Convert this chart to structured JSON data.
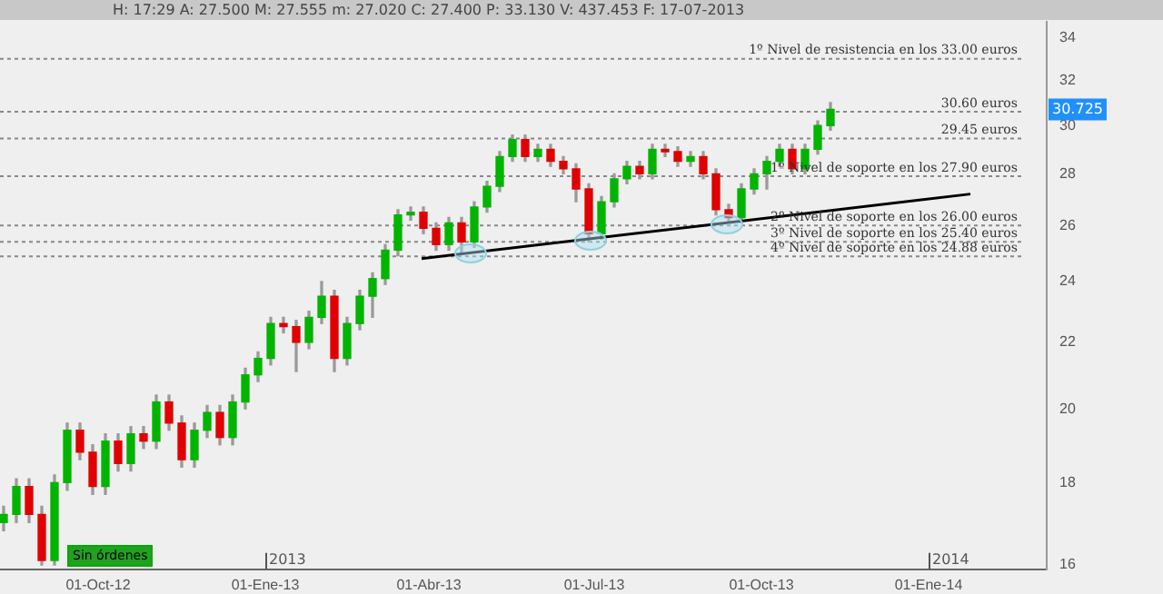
{
  "chart_data": {
    "type": "candlestick",
    "log": true,
    "grid": false,
    "legend": false,
    "xlim": [
      "2012-08-08",
      "2014-03-07"
    ],
    "xticks": [
      {
        "value": "2012-10-01",
        "label": "01-Oct-12"
      },
      {
        "value": "2013-01-01",
        "label": "01-Ene-13"
      },
      {
        "value": "2013-04-01",
        "label": "01-Abr-13"
      },
      {
        "value": "2013-07-01",
        "label": "01-Jul-13"
      },
      {
        "value": "2013-10-01",
        "label": "01-Oct-13"
      },
      {
        "value": "2014-01-01",
        "label": "01-Ene-14"
      }
    ],
    "ylim": [
      15.9,
      34.8
    ],
    "yticks": [
      16,
      18,
      20,
      22,
      24,
      26,
      28,
      30,
      32,
      34
    ],
    "series": [
      {
        "type": "candlestick",
        "x": [
          "2012-08-10",
          "2012-08-17",
          "2012-08-24",
          "2012-08-31",
          "2012-09-07",
          "2012-09-14",
          "2012-09-21",
          "2012-09-28",
          "2012-10-05",
          "2012-10-12",
          "2012-10-19",
          "2012-10-26",
          "2012-11-02",
          "2012-11-09",
          "2012-11-16",
          "2012-11-23",
          "2012-11-30",
          "2012-12-07",
          "2012-12-14",
          "2012-12-21",
          "2012-12-28",
          "2013-01-04",
          "2013-01-11",
          "2013-01-18",
          "2013-01-25",
          "2013-02-01",
          "2013-02-08",
          "2013-02-15",
          "2013-02-22",
          "2013-03-01",
          "2013-03-08",
          "2013-03-15",
          "2013-03-22",
          "2013-03-29",
          "2013-04-05",
          "2013-04-12",
          "2013-04-19",
          "2013-04-26",
          "2013-05-03",
          "2013-05-10",
          "2013-05-17",
          "2013-05-24",
          "2013-05-31",
          "2013-06-07",
          "2013-06-14",
          "2013-06-21",
          "2013-06-28",
          "2013-07-05",
          "2013-07-12",
          "2013-07-19",
          "2013-07-26",
          "2013-08-02",
          "2013-08-09",
          "2013-08-16",
          "2013-08-23",
          "2013-08-30",
          "2013-09-06",
          "2013-09-13",
          "2013-09-20",
          "2013-09-27",
          "2013-10-04",
          "2013-10-11",
          "2013-10-18",
          "2013-10-25",
          "2013-11-01",
          "2013-11-08"
        ],
        "ohlc": [
          [
            17.0,
            17.4,
            16.8,
            17.2
          ],
          [
            17.2,
            18.1,
            17.0,
            17.9
          ],
          [
            17.9,
            18.1,
            17.0,
            17.2
          ],
          [
            17.2,
            17.4,
            16.0,
            16.1
          ],
          [
            16.1,
            18.2,
            16.0,
            18.0
          ],
          [
            18.0,
            19.6,
            17.8,
            19.4
          ],
          [
            19.4,
            19.6,
            18.6,
            18.8
          ],
          [
            18.8,
            19.0,
            17.7,
            17.9
          ],
          [
            17.9,
            19.3,
            17.7,
            19.1
          ],
          [
            19.1,
            19.3,
            18.3,
            18.5
          ],
          [
            18.5,
            19.5,
            18.3,
            19.3
          ],
          [
            19.3,
            19.5,
            18.9,
            19.1
          ],
          [
            19.1,
            20.4,
            18.9,
            20.2
          ],
          [
            20.2,
            20.4,
            19.4,
            19.6
          ],
          [
            19.6,
            19.8,
            18.4,
            18.6
          ],
          [
            18.6,
            19.6,
            18.4,
            19.4
          ],
          [
            19.4,
            20.1,
            19.2,
            19.9
          ],
          [
            19.9,
            20.1,
            19.0,
            19.2
          ],
          [
            19.2,
            20.4,
            19.0,
            20.2
          ],
          [
            20.2,
            21.2,
            20.0,
            21.0
          ],
          [
            21.0,
            21.7,
            20.8,
            21.5
          ],
          [
            21.5,
            22.8,
            21.3,
            22.6
          ],
          [
            22.6,
            22.8,
            22.3,
            22.5
          ],
          [
            22.5,
            22.7,
            21.1,
            22.0
          ],
          [
            22.0,
            23.0,
            21.8,
            22.8
          ],
          [
            22.8,
            24.0,
            22.6,
            23.5
          ],
          [
            23.5,
            23.7,
            21.1,
            21.5
          ],
          [
            21.5,
            22.8,
            21.3,
            22.6
          ],
          [
            22.6,
            23.7,
            22.4,
            23.5
          ],
          [
            23.5,
            24.3,
            22.8,
            24.1
          ],
          [
            24.1,
            25.3,
            23.9,
            25.1
          ],
          [
            25.1,
            26.6,
            24.9,
            26.4
          ],
          [
            26.4,
            26.7,
            26.2,
            26.5
          ],
          [
            26.5,
            26.7,
            25.7,
            25.9
          ],
          [
            25.9,
            26.1,
            25.1,
            25.3
          ],
          [
            25.3,
            26.3,
            25.1,
            26.1
          ],
          [
            26.1,
            26.3,
            25.0,
            25.4
          ],
          [
            25.4,
            26.9,
            25.2,
            26.7
          ],
          [
            26.7,
            27.7,
            26.5,
            27.5
          ],
          [
            27.5,
            28.9,
            27.3,
            28.7
          ],
          [
            28.7,
            29.6,
            28.5,
            29.4
          ],
          [
            29.4,
            29.6,
            28.5,
            28.7
          ],
          [
            28.7,
            29.2,
            28.5,
            29.0
          ],
          [
            29.0,
            29.2,
            28.3,
            28.5
          ],
          [
            28.5,
            28.7,
            28.0,
            28.2
          ],
          [
            28.2,
            28.4,
            26.9,
            27.4
          ],
          [
            27.4,
            27.6,
            25.4,
            25.7
          ],
          [
            25.7,
            27.1,
            25.5,
            26.9
          ],
          [
            26.9,
            28.0,
            26.7,
            27.8
          ],
          [
            27.8,
            28.5,
            27.6,
            28.3
          ],
          [
            28.3,
            28.5,
            27.8,
            28.0
          ],
          [
            28.0,
            29.2,
            27.8,
            29.0
          ],
          [
            29.0,
            29.2,
            28.7,
            28.9
          ],
          [
            28.9,
            29.1,
            28.3,
            28.5
          ],
          [
            28.5,
            28.9,
            28.3,
            28.7
          ],
          [
            28.7,
            28.9,
            27.8,
            28.0
          ],
          [
            28.0,
            28.2,
            26.4,
            26.6
          ],
          [
            26.6,
            26.8,
            26.1,
            26.3
          ],
          [
            26.3,
            27.6,
            26.1,
            27.4
          ],
          [
            27.4,
            28.2,
            27.2,
            28.0
          ],
          [
            28.0,
            28.7,
            27.4,
            28.5
          ],
          [
            28.5,
            29.2,
            28.3,
            29.0
          ],
          [
            29.0,
            29.2,
            28.0,
            28.2
          ],
          [
            28.2,
            29.2,
            28.0,
            29.0
          ],
          [
            29.0,
            30.2,
            28.8,
            30.0
          ],
          [
            30.0,
            31.0,
            29.8,
            30.7
          ]
        ],
        "colors": [
          "#00b400",
          "#00b400",
          "#e00000",
          "#e00000",
          "#00b400",
          "#00b400",
          "#e00000",
          "#e00000",
          "#00b400",
          "#e00000",
          "#00b400",
          "#e00000",
          "#00b400",
          "#e00000",
          "#e00000",
          "#00b400",
          "#00b400",
          "#e00000",
          "#00b400",
          "#00b400",
          "#00b400",
          "#00b400",
          "#e00000",
          "#e00000",
          "#00b400",
          "#00b400",
          "#e00000",
          "#00b400",
          "#00b400",
          "#00b400",
          "#00b400",
          "#00b400",
          "#00b400",
          "#e00000",
          "#e00000",
          "#00b400",
          "#e00000",
          "#00b400",
          "#00b400",
          "#00b400",
          "#00b400",
          "#e00000",
          "#00b400",
          "#e00000",
          "#e00000",
          "#e00000",
          "#e00000",
          "#00b400",
          "#00b400",
          "#00b400",
          "#e00000",
          "#00b400",
          "#e00000",
          "#e00000",
          "#00b400",
          "#e00000",
          "#e00000",
          "#e00000",
          "#00b400",
          "#00b400",
          "#00b400",
          "#00b400",
          "#e00000",
          "#00b400",
          "#00b400",
          "#00b400"
        ]
      },
      {
        "type": "line",
        "x": [
          "2013-03-28",
          "2014-01-24"
        ],
        "values": [
          24.8,
          27.2
        ],
        "color": "#000000"
      }
    ],
    "ref_lines": [
      {
        "axis": "y",
        "value": 33.0,
        "label": "1º Nivel de resistencia en los 33.00 euros",
        "color": "#888888",
        "line_style": "dotted"
      },
      {
        "axis": "y",
        "value": 30.6,
        "label": "30.60 euros",
        "color": "#888888",
        "line_style": "dotted"
      },
      {
        "axis": "y",
        "value": 29.45,
        "label": "29.45 euros",
        "color": "#888888",
        "line_style": "dotted"
      },
      {
        "axis": "y",
        "value": 27.9,
        "label": "1º Nivel de soporte en los 27.90 euros",
        "color": "#888888",
        "line_style": "dotted"
      },
      {
        "axis": "y",
        "value": 26.0,
        "label": "2º Nivel de soporte en los 26.00 euros",
        "color": "#888888",
        "line_style": "dotted"
      },
      {
        "axis": "y",
        "value": 25.4,
        "label": "3º Nivel de soporte en los 25.40 euros",
        "color": "#888888",
        "line_style": "dotted"
      },
      {
        "axis": "y",
        "value": 24.88,
        "label": "4º Nivel de soporte en los 24.88 euros",
        "color": "#888888",
        "line_style": "dotted"
      }
    ],
    "annotations": [
      "H: 17:29  A: 27.500  M: 27.555  m: 27.020  C: 27.400  P: 33.130  V: 437.453  F: 17-07-2013",
      "Sin órdenes",
      "2013",
      "2014",
      "30.725"
    ]
  }
}
